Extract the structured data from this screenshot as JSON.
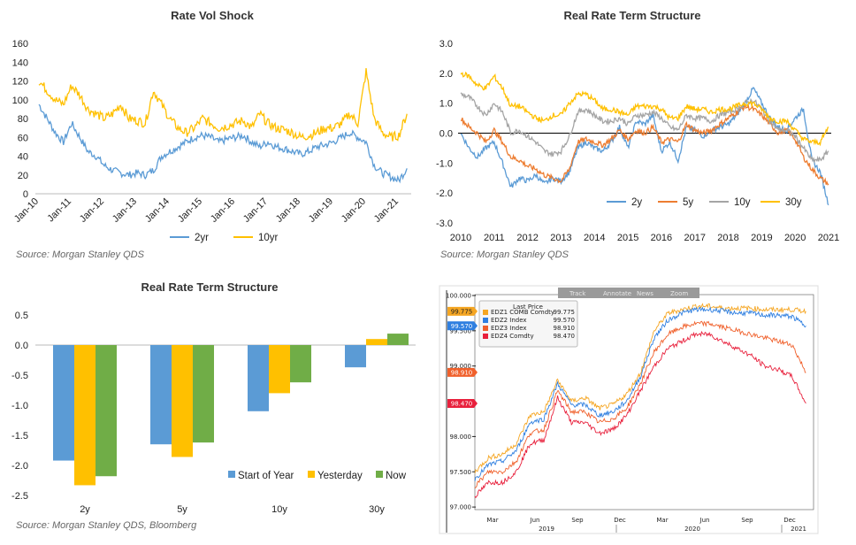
{
  "chart_data": [
    {
      "type": "line",
      "title": "Rate Vol Shock",
      "source": "Source: Morgan Stanley QDS",
      "ylim": [
        0,
        160
      ],
      "yticks": [
        0,
        20,
        40,
        60,
        80,
        100,
        120,
        140,
        160
      ],
      "xticks": [
        "Jan-10",
        "Jan-11",
        "Jan-12",
        "Jan-13",
        "Jan-14",
        "Jan-15",
        "Jan-16",
        "Jan-17",
        "Jan-18",
        "Jan-19",
        "Jan-20",
        "Jan-21"
      ],
      "x_start": 2010,
      "x_step_years": 0.25,
      "series": [
        {
          "name": "2yr",
          "color": "#5b9bd5",
          "values": [
            95,
            80,
            65,
            55,
            75,
            60,
            45,
            40,
            30,
            25,
            22,
            20,
            22,
            20,
            25,
            40,
            45,
            50,
            55,
            60,
            62,
            60,
            55,
            58,
            60,
            62,
            55,
            50,
            55,
            50,
            48,
            45,
            42,
            45,
            50,
            52,
            55,
            60,
            65,
            60,
            55,
            30,
            22,
            18,
            14,
            27
          ]
        },
        {
          "name": "10yr",
          "color": "#ffc000",
          "values": [
            120,
            110,
            100,
            95,
            115,
            105,
            90,
            85,
            80,
            85,
            95,
            80,
            78,
            75,
            110,
            95,
            80,
            70,
            65,
            70,
            80,
            75,
            70,
            72,
            75,
            78,
            70,
            85,
            75,
            70,
            68,
            65,
            60,
            62,
            65,
            70,
            70,
            75,
            85,
            75,
            130,
            80,
            65,
            60,
            62,
            85
          ]
        }
      ]
    },
    {
      "type": "line",
      "title": "Real Rate Term Structure",
      "source": "Source: Morgan Stanley QDS",
      "ylim": [
        -3,
        3
      ],
      "yticks": [
        "3.0",
        "2.0",
        "1.0",
        "0.0",
        "-1.0",
        "-2.0",
        "-3.0"
      ],
      "xticks": [
        "2010",
        "2011",
        "2012",
        "2013",
        "2014",
        "2015",
        "2016",
        "2017",
        "2018",
        "2019",
        "2020",
        "2021"
      ],
      "x_start": 2010,
      "x_step_years": 0.25,
      "series": [
        {
          "name": "2y",
          "color": "#5b9bd5",
          "values": [
            0,
            -0.5,
            -0.8,
            -0.5,
            -0.3,
            -1.0,
            -1.8,
            -1.5,
            -1.6,
            -1.4,
            -1.7,
            -1.5,
            -1.6,
            -1.3,
            -0.5,
            -0.3,
            -0.5,
            -0.6,
            -0.3,
            0.2,
            -0.5,
            0.4,
            0.3,
            0.6,
            -0.6,
            -0.3,
            -0.9,
            0.2,
            0.1,
            -0.1,
            0.1,
            0.2,
            0.3,
            0.6,
            1.0,
            1.5,
            1.0,
            0.5,
            0.2,
            0.1,
            0.5,
            0.8,
            -0.9,
            -1.3,
            -2.4
          ]
        },
        {
          "name": "5y",
          "color": "#ed7d31",
          "values": [
            0.5,
            0.2,
            0,
            -0.3,
            0.1,
            -0.3,
            -0.8,
            -0.9,
            -1.1,
            -1.2,
            -1.4,
            -1.5,
            -1.6,
            -1.2,
            -0.3,
            -0.2,
            -0.3,
            -0.4,
            -0.2,
            0.1,
            -0.2,
            0.1,
            0,
            0.2,
            -0.3,
            -0.2,
            -0.3,
            0.3,
            0.1,
            0,
            0.1,
            0.3,
            0.5,
            0.7,
            0.9,
            0.8,
            0.6,
            0.3,
            0,
            0.1,
            -0.2,
            -0.8,
            -1.2,
            -1.5,
            -1.7
          ]
        },
        {
          "name": "10y",
          "color": "#a5a5a5",
          "values": [
            1.3,
            1.2,
            0.9,
            0.6,
            1.0,
            0.7,
            0,
            0.1,
            -0.1,
            -0.3,
            -0.6,
            -0.7,
            -0.6,
            -0.1,
            0.7,
            0.8,
            0.6,
            0.4,
            0.4,
            0.5,
            0.3,
            0.6,
            0.6,
            0.7,
            0.5,
            0.2,
            0.1,
            0.6,
            0.5,
            0.5,
            0.4,
            0.6,
            0.7,
            0.8,
            1.0,
            1.1,
            0.8,
            0.4,
            0.1,
            0.1,
            -0.1,
            -0.5,
            -0.9,
            -0.9,
            -0.6
          ]
        },
        {
          "name": "30y",
          "color": "#ffc000",
          "values": [
            2.0,
            1.9,
            1.6,
            1.5,
            1.9,
            1.5,
            0.9,
            0.9,
            0.7,
            0.5,
            0.4,
            0.6,
            0.6,
            1.0,
            1.3,
            1.3,
            1.1,
            0.8,
            0.8,
            0.7,
            0.6,
            0.9,
            0.9,
            0.9,
            0.8,
            0.5,
            0.5,
            0.9,
            0.8,
            0.8,
            0.7,
            0.8,
            0.8,
            0.9,
            1.0,
            1.0,
            0.8,
            0.5,
            0.4,
            0.4,
            0.1,
            -0.2,
            -0.3,
            -0.3,
            0.2
          ]
        }
      ]
    },
    {
      "type": "bar",
      "title": "Real Rate Term Structure",
      "source": "Source: Morgan Stanley QDS, Bloomberg",
      "ylim": [
        -2.5,
        0.5
      ],
      "yticks": [
        "0.5",
        "0.0",
        "-0.5",
        "-1.0",
        "-1.5",
        "-2.0",
        "-2.5"
      ],
      "categories": [
        "2y",
        "5y",
        "10y",
        "30y"
      ],
      "series": [
        {
          "name": "Start of Year",
          "color": "#5b9bd5",
          "values": [
            -1.92,
            -1.65,
            -1.1,
            -0.37
          ]
        },
        {
          "name": "Yesterday",
          "color": "#ffc000",
          "values": [
            -2.33,
            -1.86,
            -0.8,
            0.1
          ]
        },
        {
          "name": "Now",
          "color": "#70ad47",
          "values": [
            -2.18,
            -1.62,
            -0.62,
            0.19
          ]
        }
      ]
    },
    {
      "type": "line",
      "title": "",
      "ylim": [
        97,
        100
      ],
      "yticks": [
        "100.000",
        "99.500",
        "99.000",
        "98.000",
        "97.500",
        "97.000"
      ],
      "toolbar": [
        "Track",
        "Annotate",
        "News",
        "Zoom"
      ],
      "legend_title": "Last Price",
      "xticks": [
        "Mar",
        "Jun",
        "Sep",
        "Dec",
        "Mar",
        "Jun",
        "Sep",
        "Dec"
      ],
      "years": [
        "2019",
        "2020",
        "2021"
      ],
      "x_start": "Feb 2019",
      "x_step": "month",
      "series": [
        {
          "name": "EDZ1 COMB Comdty",
          "last": "99.775",
          "color": "#f5a623",
          "values": [
            97.5,
            97.7,
            97.75,
            97.9,
            98.3,
            98.35,
            98.8,
            98.5,
            98.55,
            98.4,
            98.45,
            98.6,
            98.9,
            99.5,
            99.75,
            99.8,
            99.85,
            99.85,
            99.82,
            99.82,
            99.82,
            99.8,
            99.8,
            99.8,
            99.775
          ]
        },
        {
          "name": "EDZ2 Index",
          "last": "99.570",
          "color": "#2f7fe0",
          "values": [
            97.4,
            97.6,
            97.65,
            97.8,
            98.2,
            98.25,
            98.75,
            98.45,
            98.45,
            98.3,
            98.35,
            98.5,
            98.85,
            99.4,
            99.65,
            99.75,
            99.8,
            99.8,
            99.78,
            99.75,
            99.75,
            99.72,
            99.72,
            99.7,
            99.57
          ]
        },
        {
          "name": "EDZ3 Index",
          "last": "98.910",
          "color": "#f0602b",
          "values": [
            97.3,
            97.5,
            97.5,
            97.65,
            98.05,
            98.1,
            98.65,
            98.35,
            98.35,
            98.2,
            98.25,
            98.4,
            98.75,
            99.2,
            99.45,
            99.55,
            99.6,
            99.6,
            99.55,
            99.5,
            99.45,
            99.4,
            99.35,
            99.3,
            98.91
          ]
        },
        {
          "name": "EDZ4 Comdty",
          "last": "98.470",
          "color": "#e8203c",
          "values": [
            97.15,
            97.35,
            97.35,
            97.5,
            97.9,
            97.95,
            98.55,
            98.2,
            98.2,
            98.05,
            98.1,
            98.3,
            98.65,
            99.0,
            99.25,
            99.35,
            99.45,
            99.45,
            99.35,
            99.25,
            99.15,
            99.0,
            98.95,
            98.85,
            98.47
          ]
        }
      ]
    }
  ]
}
